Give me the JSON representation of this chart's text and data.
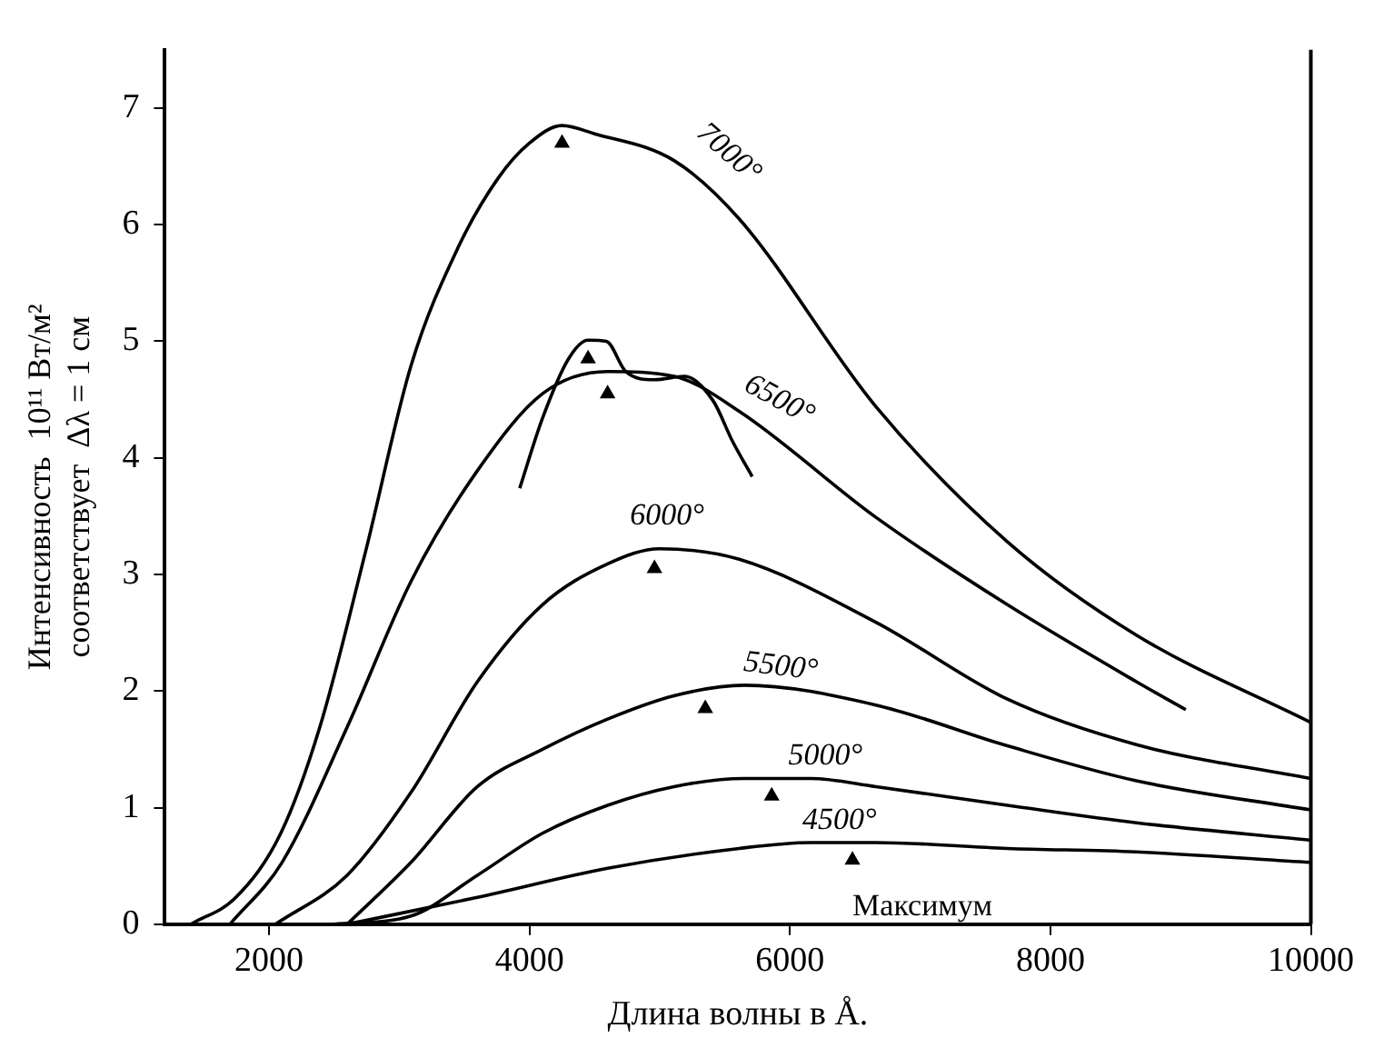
{
  "chart_data": {
    "type": "line",
    "xlabel": "Длина волны в Å.",
    "ylabel": "Интенсивность  10¹¹ Вт/м²\nсоответствует  Δλ = 1 см",
    "xlim": [
      1200,
      10000
    ],
    "xticks": [
      2000,
      4000,
      6000,
      8000,
      10000
    ],
    "ylim": [
      0,
      7.5
    ],
    "yticks": [
      0,
      1,
      2,
      3,
      4,
      5,
      6,
      7
    ],
    "grid": false,
    "legend": false,
    "marker": "none",
    "line_style": "solid",
    "series": [
      {
        "name": "7000°",
        "color": "#000000",
        "x": [
          1400,
          1745,
          2090,
          2390,
          2740,
          3090,
          3450,
          3760,
          4000,
          4250,
          4500,
          5110,
          5610,
          6660,
          7670,
          8660,
          10000
        ],
        "values": [
          0,
          0.23,
          0.78,
          1.69,
          3.19,
          4.79,
          5.8,
          6.4,
          6.7,
          6.85,
          6.78,
          6.55,
          6.05,
          4.44,
          3.28,
          2.48,
          1.73
        ]
      },
      {
        "name": "6500°",
        "color": "#000000",
        "x": [
          1700,
          2100,
          2600,
          3090,
          3600,
          4100,
          4600,
          5110,
          5610,
          6660,
          7670,
          8660,
          9040
        ],
        "values": [
          0,
          0.53,
          1.69,
          2.94,
          3.89,
          4.55,
          4.74,
          4.7,
          4.4,
          3.49,
          2.74,
          2.08,
          1.84
        ]
      },
      {
        "name": "6000°",
        "color": "#000000",
        "x": [
          2050,
          2600,
          3090,
          3600,
          4100,
          4600,
          5000,
          5610,
          6660,
          7670,
          8660,
          10000
        ],
        "values": [
          0,
          0.42,
          1.13,
          2.08,
          2.74,
          3.09,
          3.22,
          3.13,
          2.59,
          1.93,
          1.54,
          1.25
        ]
      },
      {
        "name": "5500°",
        "color": "#000000",
        "x": [
          2600,
          3090,
          3600,
          4100,
          4600,
          5110,
          5650,
          6660,
          7670,
          8660,
          10000
        ],
        "values": [
          0,
          0.53,
          1.18,
          1.5,
          1.76,
          1.96,
          2.05,
          1.88,
          1.53,
          1.23,
          0.98
        ]
      },
      {
        "name": "5000°",
        "color": "#000000",
        "x": [
          2500,
          3090,
          3600,
          4100,
          4600,
          5110,
          5650,
          6160,
          6660,
          7670,
          8660,
          10000
        ],
        "values": [
          0,
          0.07,
          0.42,
          0.78,
          1.02,
          1.18,
          1.25,
          1.25,
          1.18,
          1.02,
          0.87,
          0.72
        ]
      },
      {
        "name": "4500°",
        "color": "#000000",
        "x": [
          2600,
          3600,
          4600,
          5610,
          6160,
          6660,
          7670,
          8660,
          10000
        ],
        "values": [
          0,
          0.23,
          0.48,
          0.65,
          0.7,
          0.7,
          0.65,
          0.62,
          0.53
        ]
      },
      {
        "color": "#000000",
        "x": [
          3925,
          4100,
          4300,
          4450,
          4590,
          4740,
          4960,
          5190,
          5410,
          5560,
          5710
        ],
        "values": [
          3.74,
          4.34,
          4.85,
          5.01,
          5.0,
          4.74,
          4.67,
          4.7,
          4.49,
          4.14,
          3.84
        ]
      },
      {
        "type": "scatter",
        "marker": "triangle",
        "color": "#000000",
        "x": [
          4250,
          4450,
          4600,
          4960,
          5350,
          5860,
          6480
        ],
        "values": [
          6.7,
          4.85,
          4.55,
          3.05,
          1.85,
          1.1,
          0.55
        ]
      }
    ],
    "annotations": [
      "Максимум"
    ]
  }
}
